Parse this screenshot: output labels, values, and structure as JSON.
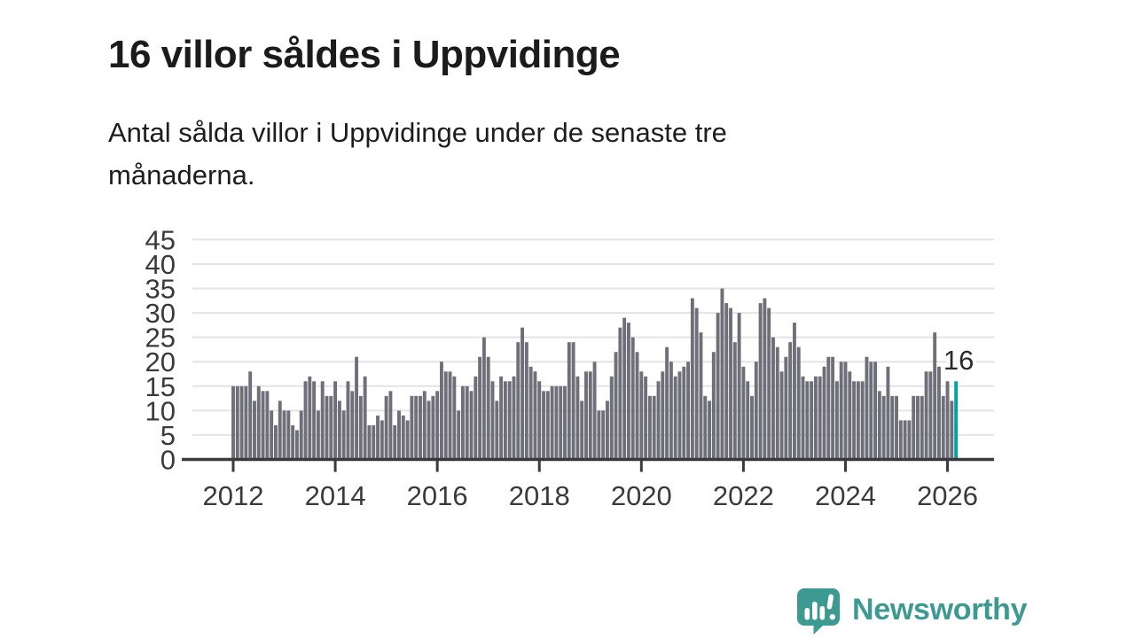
{
  "header": {
    "title": "16 villor såldes i Uppvidinge",
    "subtitle_line1": "Antal sålda villor i Uppvidinge under de senaste tre",
    "subtitle_line2": "månaderna."
  },
  "chart_data": {
    "type": "bar",
    "title": "16 villor såldes i Uppvidinge",
    "subtitle": "Antal sålda villor i Uppvidinge under de senaste tre månaderna.",
    "frequency": "monthly",
    "start_year": 2012,
    "values": [
      15,
      15,
      15,
      15,
      18,
      12,
      15,
      14,
      14,
      10,
      7,
      12,
      10,
      10,
      7,
      6,
      10,
      16,
      17,
      16,
      10,
      16,
      13,
      13,
      16,
      12,
      10,
      16,
      14,
      21,
      13,
      17,
      7,
      7,
      9,
      8,
      13,
      14,
      7,
      10,
      9,
      8,
      13,
      13,
      13,
      14,
      12,
      13,
      14,
      20,
      18,
      18,
      17,
      10,
      15,
      15,
      14,
      17,
      21,
      25,
      21,
      16,
      12,
      17,
      16,
      16,
      17,
      24,
      27,
      24,
      19,
      18,
      16,
      14,
      14,
      15,
      15,
      15,
      15,
      24,
      24,
      17,
      12,
      18,
      18,
      20,
      10,
      10,
      12,
      17,
      22,
      27,
      29,
      28,
      25,
      22,
      18,
      17,
      13,
      13,
      16,
      18,
      23,
      20,
      17,
      18,
      19,
      20,
      33,
      31,
      26,
      13,
      12,
      22,
      30,
      35,
      32,
      31,
      24,
      30,
      19,
      16,
      13,
      20,
      32,
      33,
      31,
      25,
      23,
      18,
      21,
      24,
      28,
      23,
      17,
      16,
      16,
      17,
      17,
      19,
      21,
      21,
      16,
      20,
      20,
      18,
      16,
      16,
      16,
      21,
      20,
      20,
      14,
      13,
      19,
      13,
      13,
      8,
      8,
      8,
      13,
      13,
      13,
      18,
      18,
      26,
      19,
      13,
      16,
      12,
      16
    ],
    "highlight_last": {
      "label": "16",
      "value": 16
    },
    "x_axis": {
      "tick_years": [
        2012,
        2014,
        2016,
        2018,
        2020,
        2022,
        2024,
        2026
      ]
    },
    "y_axis": {
      "ticks": [
        0,
        5,
        10,
        15,
        20,
        25,
        30,
        35,
        40,
        45
      ],
      "min": 0,
      "max": 45
    },
    "grid": "horizontal",
    "legend": "none",
    "colors": {
      "bar": "#6F6F79",
      "highlight": "#00A2A4",
      "axis": "#3A3A3C",
      "grid": "#E4E4E6",
      "tick_label": "#3A3A3C",
      "annotation": "#2B2B2B"
    }
  },
  "branding": {
    "name": "Newsworthy",
    "color": "#3D9A93",
    "icon": "speech-bubble-bar-chart-icon"
  }
}
